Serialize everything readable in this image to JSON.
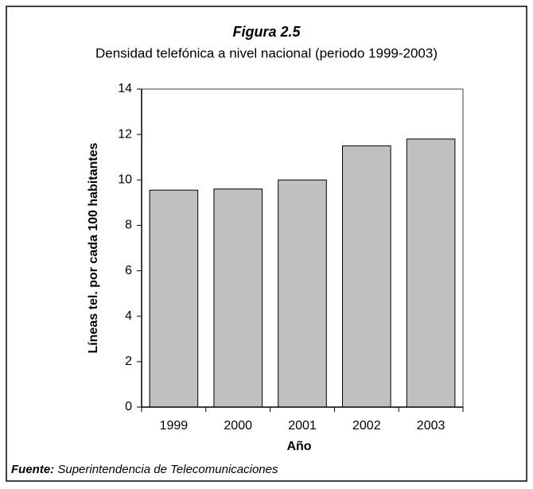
{
  "chart_data": {
    "type": "bar",
    "title": "Figura 2.5",
    "subtitle": "Densidad telefónica a nivel nacional (periodo 1999-2003)",
    "y_label": "Líneas tel. por cada 100 habitantes",
    "x_label": "Año",
    "source_label": "Fuente:",
    "source": "Superintendencia de Telecomunicaciones",
    "categories": [
      "1999",
      "2000",
      "2001",
      "2002",
      "2003"
    ],
    "values": [
      9.55,
      9.6,
      10.0,
      11.5,
      11.8
    ],
    "color": "#c0c0c0",
    "ylim": [
      0,
      14
    ],
    "yticks": [
      0,
      2,
      4,
      6,
      8,
      10,
      12,
      14
    ],
    "grid": false
  }
}
